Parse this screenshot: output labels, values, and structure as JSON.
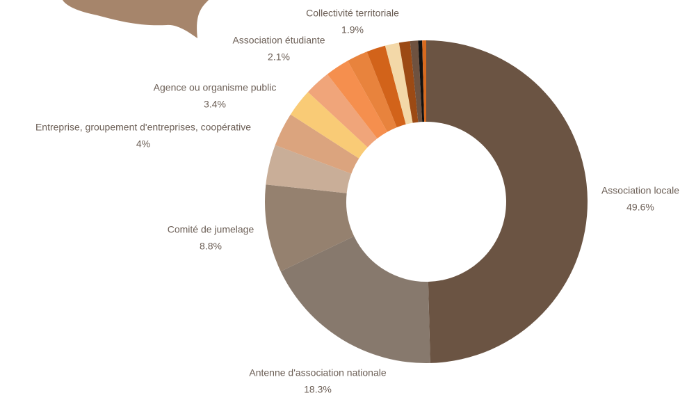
{
  "chart_data": {
    "type": "donut",
    "categories": [
      "Association locale",
      "Antenne d'association nationale",
      "Comité de jumelage",
      "Entreprise, groupement d'entreprises, coopérative",
      "Agence ou organisme public",
      null,
      null,
      null,
      "Association étudiante",
      "Collectivité territoriale",
      null,
      null,
      null,
      null,
      null
    ],
    "values": [
      49.6,
      18.3,
      8.8,
      4,
      3.4,
      2.8,
      2.6,
      2.4,
      2.1,
      1.9,
      1.4,
      1.1,
      0.8,
      0.4,
      0.4
    ],
    "value_labels": [
      "49.6%",
      "18.3%",
      "8.8%",
      "4%",
      "3.4%",
      null,
      null,
      null,
      "2.1%",
      "1.9%",
      null,
      null,
      null,
      null,
      null
    ],
    "colors": [
      "#6b5443",
      "#87796d",
      "#95816f",
      "#c9ae98",
      "#dba47e",
      "#f9cb76",
      "#f0a57a",
      "#f58f4e",
      "#e8833d",
      "#d2631a",
      "#f3d8a8",
      "#9c4a14",
      "#6e5240",
      "#111111",
      "#d86a1e"
    ]
  }
}
